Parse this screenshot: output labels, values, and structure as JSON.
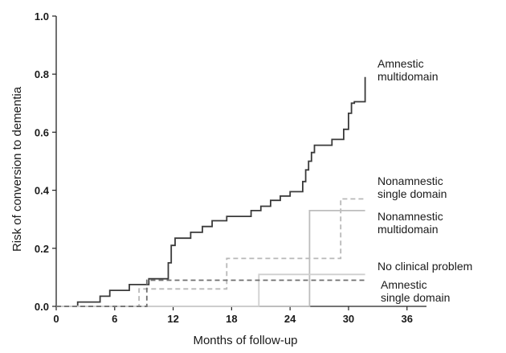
{
  "chart_data": {
    "type": "line",
    "subtype": "step",
    "title": "",
    "xlabel": "Months of follow-up",
    "ylabel": "Risk of conversion to dementia",
    "xlim": [
      0,
      38
    ],
    "ylim": [
      0,
      1.0
    ],
    "xticks": [
      0,
      6,
      12,
      18,
      24,
      30,
      36
    ],
    "yticks": [
      0.0,
      0.2,
      0.4,
      0.6,
      0.8,
      1.0
    ],
    "xtick_labels": [
      "0",
      "6",
      "12",
      "18",
      "24",
      "30",
      "36"
    ],
    "ytick_labels": [
      "0.0",
      "0.2",
      "0.4",
      "0.6",
      "0.8",
      "1.0"
    ],
    "grid": false,
    "legend": "inline-right",
    "series": [
      {
        "name": "Amnestic multidomain",
        "label_lines": [
          "Amnestic",
          "multidomain"
        ],
        "color": "#3a3a3a",
        "dash": "solid",
        "points": [
          [
            0,
            0
          ],
          [
            2.2,
            0
          ],
          [
            2.2,
            0.015
          ],
          [
            4.5,
            0.015
          ],
          [
            4.5,
            0.035
          ],
          [
            5.5,
            0.035
          ],
          [
            5.5,
            0.055
          ],
          [
            7.5,
            0.055
          ],
          [
            7.5,
            0.075
          ],
          [
            9.5,
            0.075
          ],
          [
            9.5,
            0.095
          ],
          [
            11.5,
            0.095
          ],
          [
            11.5,
            0.15
          ],
          [
            11.8,
            0.15
          ],
          [
            11.8,
            0.21
          ],
          [
            12.2,
            0.21
          ],
          [
            12.2,
            0.235
          ],
          [
            13.8,
            0.235
          ],
          [
            13.8,
            0.255
          ],
          [
            15,
            0.255
          ],
          [
            15,
            0.275
          ],
          [
            16,
            0.275
          ],
          [
            16,
            0.295
          ],
          [
            17.5,
            0.295
          ],
          [
            17.5,
            0.31
          ],
          [
            20,
            0.31
          ],
          [
            20,
            0.33
          ],
          [
            21,
            0.33
          ],
          [
            21,
            0.345
          ],
          [
            22,
            0.345
          ],
          [
            22,
            0.365
          ],
          [
            23,
            0.365
          ],
          [
            23,
            0.38
          ],
          [
            24,
            0.38
          ],
          [
            24,
            0.395
          ],
          [
            25.3,
            0.395
          ],
          [
            25.3,
            0.43
          ],
          [
            25.6,
            0.43
          ],
          [
            25.6,
            0.47
          ],
          [
            25.9,
            0.47
          ],
          [
            25.9,
            0.5
          ],
          [
            26.2,
            0.5
          ],
          [
            26.2,
            0.53
          ],
          [
            26.5,
            0.53
          ],
          [
            26.5,
            0.555
          ],
          [
            28.3,
            0.555
          ],
          [
            28.3,
            0.575
          ],
          [
            29.5,
            0.575
          ],
          [
            29.5,
            0.61
          ],
          [
            30,
            0.61
          ],
          [
            30,
            0.665
          ],
          [
            30.3,
            0.665
          ],
          [
            30.3,
            0.7
          ],
          [
            30.6,
            0.7
          ],
          [
            30.6,
            0.705
          ],
          [
            31.7,
            0.705
          ],
          [
            31.7,
            0.79
          ]
        ]
      },
      {
        "name": "Nonamnestic single domain",
        "label_lines": [
          "Nonamnestic",
          "single domain"
        ],
        "color": "#b8b8b8",
        "dash": "dashed",
        "points": [
          [
            0,
            0
          ],
          [
            8.5,
            0
          ],
          [
            8.5,
            0.06
          ],
          [
            17.5,
            0.06
          ],
          [
            17.5,
            0.165
          ],
          [
            29.2,
            0.165
          ],
          [
            29.2,
            0.37
          ],
          [
            31.7,
            0.37
          ]
        ]
      },
      {
        "name": "Nonamnestic multidomain",
        "label_lines": [
          "Nonamnestic",
          "multidomain"
        ],
        "color": "#bdbdbd",
        "dash": "solid",
        "points": [
          [
            0,
            0
          ],
          [
            26,
            0
          ],
          [
            26,
            0.33
          ],
          [
            31.7,
            0.33
          ]
        ]
      },
      {
        "name": "No clinical problem",
        "label_lines": [
          "No clinical problem"
        ],
        "color": "#cfcfcf",
        "dash": "solid",
        "points": [
          [
            0,
            0
          ],
          [
            20.8,
            0
          ],
          [
            20.8,
            0.11
          ],
          [
            31.7,
            0.11
          ]
        ]
      },
      {
        "name": "Amnestic single domain",
        "label_lines": [
          "Amnestic",
          "single domain"
        ],
        "color": "#6e6e6e",
        "dash": "dashed",
        "points": [
          [
            0,
            0
          ],
          [
            9.3,
            0
          ],
          [
            9.3,
            0.09
          ],
          [
            31.7,
            0.09
          ]
        ]
      }
    ]
  }
}
